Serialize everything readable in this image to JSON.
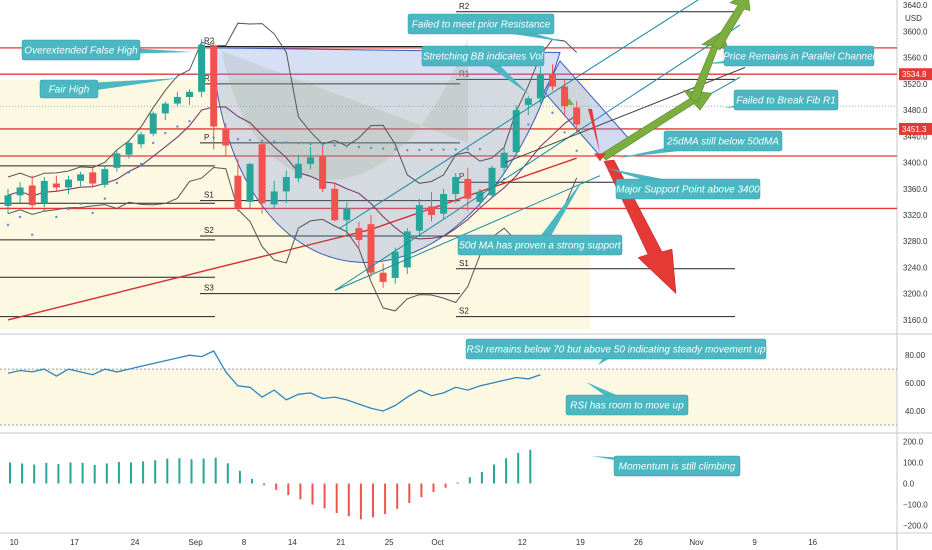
{
  "chart_data": {
    "type": "candlestick",
    "price_axis": {
      "currency": "USD",
      "ticks": [
        3640.0,
        3600.0,
        3560.0,
        3520.0,
        3480.0,
        3440.0,
        3400.0,
        3360.0,
        3320.0,
        3280.0,
        3240.0,
        3200.0,
        3160.0
      ],
      "tick_labels": [
        "3640.0",
        "3600.0",
        "3560.0",
        "3520.0",
        "3480.0",
        "3440.0",
        "3400.0",
        "3360.0",
        "3320.0",
        "3280.0",
        "3240.0",
        "3200.0",
        "3160.0"
      ],
      "range": [
        3140,
        3648
      ],
      "tags": [
        {
          "value": 3534.8,
          "label": "3534.8"
        },
        {
          "value": 3451.3,
          "label": "3451.3"
        }
      ]
    },
    "rsi_axis": {
      "ticks": [
        80,
        60,
        40
      ],
      "tick_labels": [
        "80.00",
        "60.00",
        "40.00"
      ],
      "range": [
        25,
        93
      ],
      "band": [
        30,
        70
      ]
    },
    "momentum_axis": {
      "ticks": [
        200,
        100,
        0,
        -100,
        -200
      ],
      "tick_labels": [
        "200.0",
        "100.0",
        "0.0",
        "−100.0",
        "−200.0"
      ],
      "range": [
        -230,
        230
      ]
    },
    "date_axis": {
      "labels": [
        {
          "i": 0.5,
          "text": "10"
        },
        {
          "i": 5.5,
          "text": "17"
        },
        {
          "i": 10.5,
          "text": "24"
        },
        {
          "i": 15.5,
          "text": "Sep"
        },
        {
          "i": 19.5,
          "text": "8"
        },
        {
          "i": 23.5,
          "text": "14"
        },
        {
          "i": 27.5,
          "text": "21"
        },
        {
          "i": 31.5,
          "text": "25"
        },
        {
          "i": 35.5,
          "text": "Oct"
        },
        {
          "i": 42.5,
          "text": "12"
        },
        {
          "i": 47.3,
          "text": "19"
        },
        {
          "i": 52.1,
          "text": "26"
        },
        {
          "i": 56.9,
          "text": "Nov"
        },
        {
          "i": 61.7,
          "text": "9"
        },
        {
          "i": 66.5,
          "text": "16"
        }
      ]
    },
    "candles": [
      {
        "o": 3334,
        "h": 3360,
        "l": 3322,
        "c": 3350
      },
      {
        "o": 3350,
        "h": 3370,
        "l": 3338,
        "c": 3362
      },
      {
        "o": 3365,
        "h": 3380,
        "l": 3328,
        "c": 3335
      },
      {
        "o": 3338,
        "h": 3378,
        "l": 3332,
        "c": 3372
      },
      {
        "o": 3368,
        "h": 3380,
        "l": 3355,
        "c": 3362
      },
      {
        "o": 3362,
        "h": 3380,
        "l": 3352,
        "c": 3374
      },
      {
        "o": 3372,
        "h": 3386,
        "l": 3364,
        "c": 3382
      },
      {
        "o": 3385,
        "h": 3392,
        "l": 3362,
        "c": 3368
      },
      {
        "o": 3366,
        "h": 3395,
        "l": 3362,
        "c": 3390
      },
      {
        "o": 3392,
        "h": 3418,
        "l": 3386,
        "c": 3414
      },
      {
        "o": 3412,
        "h": 3434,
        "l": 3406,
        "c": 3430
      },
      {
        "o": 3428,
        "h": 3447,
        "l": 3422,
        "c": 3443
      },
      {
        "o": 3444,
        "h": 3478,
        "l": 3440,
        "c": 3475
      },
      {
        "o": 3475,
        "h": 3493,
        "l": 3465,
        "c": 3490
      },
      {
        "o": 3490,
        "h": 3508,
        "l": 3486,
        "c": 3500
      },
      {
        "o": 3500,
        "h": 3512,
        "l": 3488,
        "c": 3508
      },
      {
        "o": 3508,
        "h": 3588,
        "l": 3500,
        "c": 3580
      },
      {
        "o": 3578,
        "h": 3586,
        "l": 3420,
        "c": 3455
      },
      {
        "o": 3452,
        "h": 3460,
        "l": 3410,
        "c": 3426
      },
      {
        "o": 3380,
        "h": 3405,
        "l": 3325,
        "c": 3330
      },
      {
        "o": 3340,
        "h": 3400,
        "l": 3330,
        "c": 3398
      },
      {
        "o": 3428,
        "h": 3430,
        "l": 3322,
        "c": 3338
      },
      {
        "o": 3336,
        "h": 3372,
        "l": 3330,
        "c": 3356
      },
      {
        "o": 3356,
        "h": 3388,
        "l": 3338,
        "c": 3378
      },
      {
        "o": 3376,
        "h": 3412,
        "l": 3370,
        "c": 3398
      },
      {
        "o": 3398,
        "h": 3424,
        "l": 3390,
        "c": 3408
      },
      {
        "o": 3410,
        "h": 3425,
        "l": 3355,
        "c": 3360
      },
      {
        "o": 3360,
        "h": 3370,
        "l": 3310,
        "c": 3312
      },
      {
        "o": 3312,
        "h": 3340,
        "l": 3290,
        "c": 3330
      },
      {
        "o": 3300,
        "h": 3310,
        "l": 3270,
        "c": 3282
      },
      {
        "o": 3306,
        "h": 3320,
        "l": 3225,
        "c": 3232
      },
      {
        "o": 3232,
        "h": 3246,
        "l": 3209,
        "c": 3218
      },
      {
        "o": 3224,
        "h": 3270,
        "l": 3215,
        "c": 3264
      },
      {
        "o": 3240,
        "h": 3300,
        "l": 3230,
        "c": 3295
      },
      {
        "o": 3296,
        "h": 3345,
        "l": 3290,
        "c": 3335
      },
      {
        "o": 3333,
        "h": 3355,
        "l": 3310,
        "c": 3320
      },
      {
        "o": 3322,
        "h": 3360,
        "l": 3315,
        "c": 3352
      },
      {
        "o": 3352,
        "h": 3384,
        "l": 3338,
        "c": 3378
      },
      {
        "o": 3375,
        "h": 3392,
        "l": 3326,
        "c": 3345
      },
      {
        "o": 3340,
        "h": 3360,
        "l": 3330,
        "c": 3355
      },
      {
        "o": 3350,
        "h": 3395,
        "l": 3345,
        "c": 3392
      },
      {
        "o": 3392,
        "h": 3424,
        "l": 3384,
        "c": 3415
      },
      {
        "o": 3416,
        "h": 3488,
        "l": 3410,
        "c": 3480
      },
      {
        "o": 3488,
        "h": 3502,
        "l": 3472,
        "c": 3498
      },
      {
        "o": 3498,
        "h": 3546,
        "l": 3490,
        "c": 3534
      },
      {
        "o": 3534,
        "h": 3550,
        "l": 3510,
        "c": 3516
      },
      {
        "o": 3516,
        "h": 3526,
        "l": 3470,
        "c": 3486
      },
      {
        "o": 3484,
        "h": 3494,
        "l": 3445,
        "c": 3458
      }
    ],
    "rsi": [
      67,
      69,
      68,
      70,
      65,
      70,
      68,
      66,
      70,
      68,
      70,
      72,
      74,
      76,
      78,
      80,
      79,
      83,
      68,
      58,
      57,
      50,
      55,
      48,
      52,
      53,
      49,
      50,
      48,
      45,
      42,
      40,
      44,
      50,
      55,
      51,
      53,
      57,
      55,
      58,
      60,
      62,
      64,
      63,
      66
    ],
    "momentum": [
      100,
      95,
      90,
      98,
      92,
      100,
      98,
      88,
      95,
      102,
      100,
      105,
      110,
      118,
      120,
      115,
      118,
      122,
      96,
      60,
      22,
      -8,
      -30,
      -55,
      -75,
      -100,
      -118,
      -140,
      -155,
      -170,
      -160,
      -145,
      -120,
      -92,
      -65,
      -40,
      -20,
      5,
      30,
      55,
      90,
      120,
      145,
      160
    ]
  },
  "annotations": [
    {
      "id": "overextended",
      "text": "Overextended False High"
    },
    {
      "id": "fair-high",
      "text": "Fair High"
    },
    {
      "id": "failed-resistance",
      "text": "Failed to meet prior Resistance"
    },
    {
      "id": "stretching-bb",
      "text": "Stretching BB indicates Vol"
    },
    {
      "id": "parallel-channel",
      "text": "Price Remains in Parallel Channel"
    },
    {
      "id": "fib-r1",
      "text": "Failed to Break Fib R1"
    },
    {
      "id": "ma-25-50",
      "text": "25dMA still below 50dMA"
    },
    {
      "id": "major-support",
      "text": "Major Support Point above 3400"
    },
    {
      "id": "ma-support",
      "text": "50d MA has proven a strong support"
    },
    {
      "id": "rsi-band",
      "text": "RSI remains below 70 but above 50 indicating steady movement up"
    },
    {
      "id": "rsi-room",
      "text": "RSI has room to move up"
    },
    {
      "id": "momentum",
      "text": "Momentum is still climbing"
    }
  ],
  "pivots": [
    {
      "label": "R2"
    },
    {
      "label": "R1"
    },
    {
      "label": "P"
    },
    {
      "label": "S1"
    },
    {
      "label": "S2"
    },
    {
      "label": "S3"
    },
    {
      "label": "R2"
    },
    {
      "label": "R1"
    },
    {
      "label": "P"
    },
    {
      "label": "S1"
    },
    {
      "label": "S2"
    }
  ],
  "colors": {
    "up": "#26a69a",
    "down": "#ef5350",
    "callout": "#4bb7c2",
    "channel": "#1a8aa0",
    "red_line": "#e53935",
    "ma_red": "#d32f2f",
    "ma_purple": "#7b3f6b",
    "bb": "#555555",
    "rsi": "#2e86c1",
    "arrow_green": "#7cae3f",
    "arrow_red": "#e53935"
  }
}
